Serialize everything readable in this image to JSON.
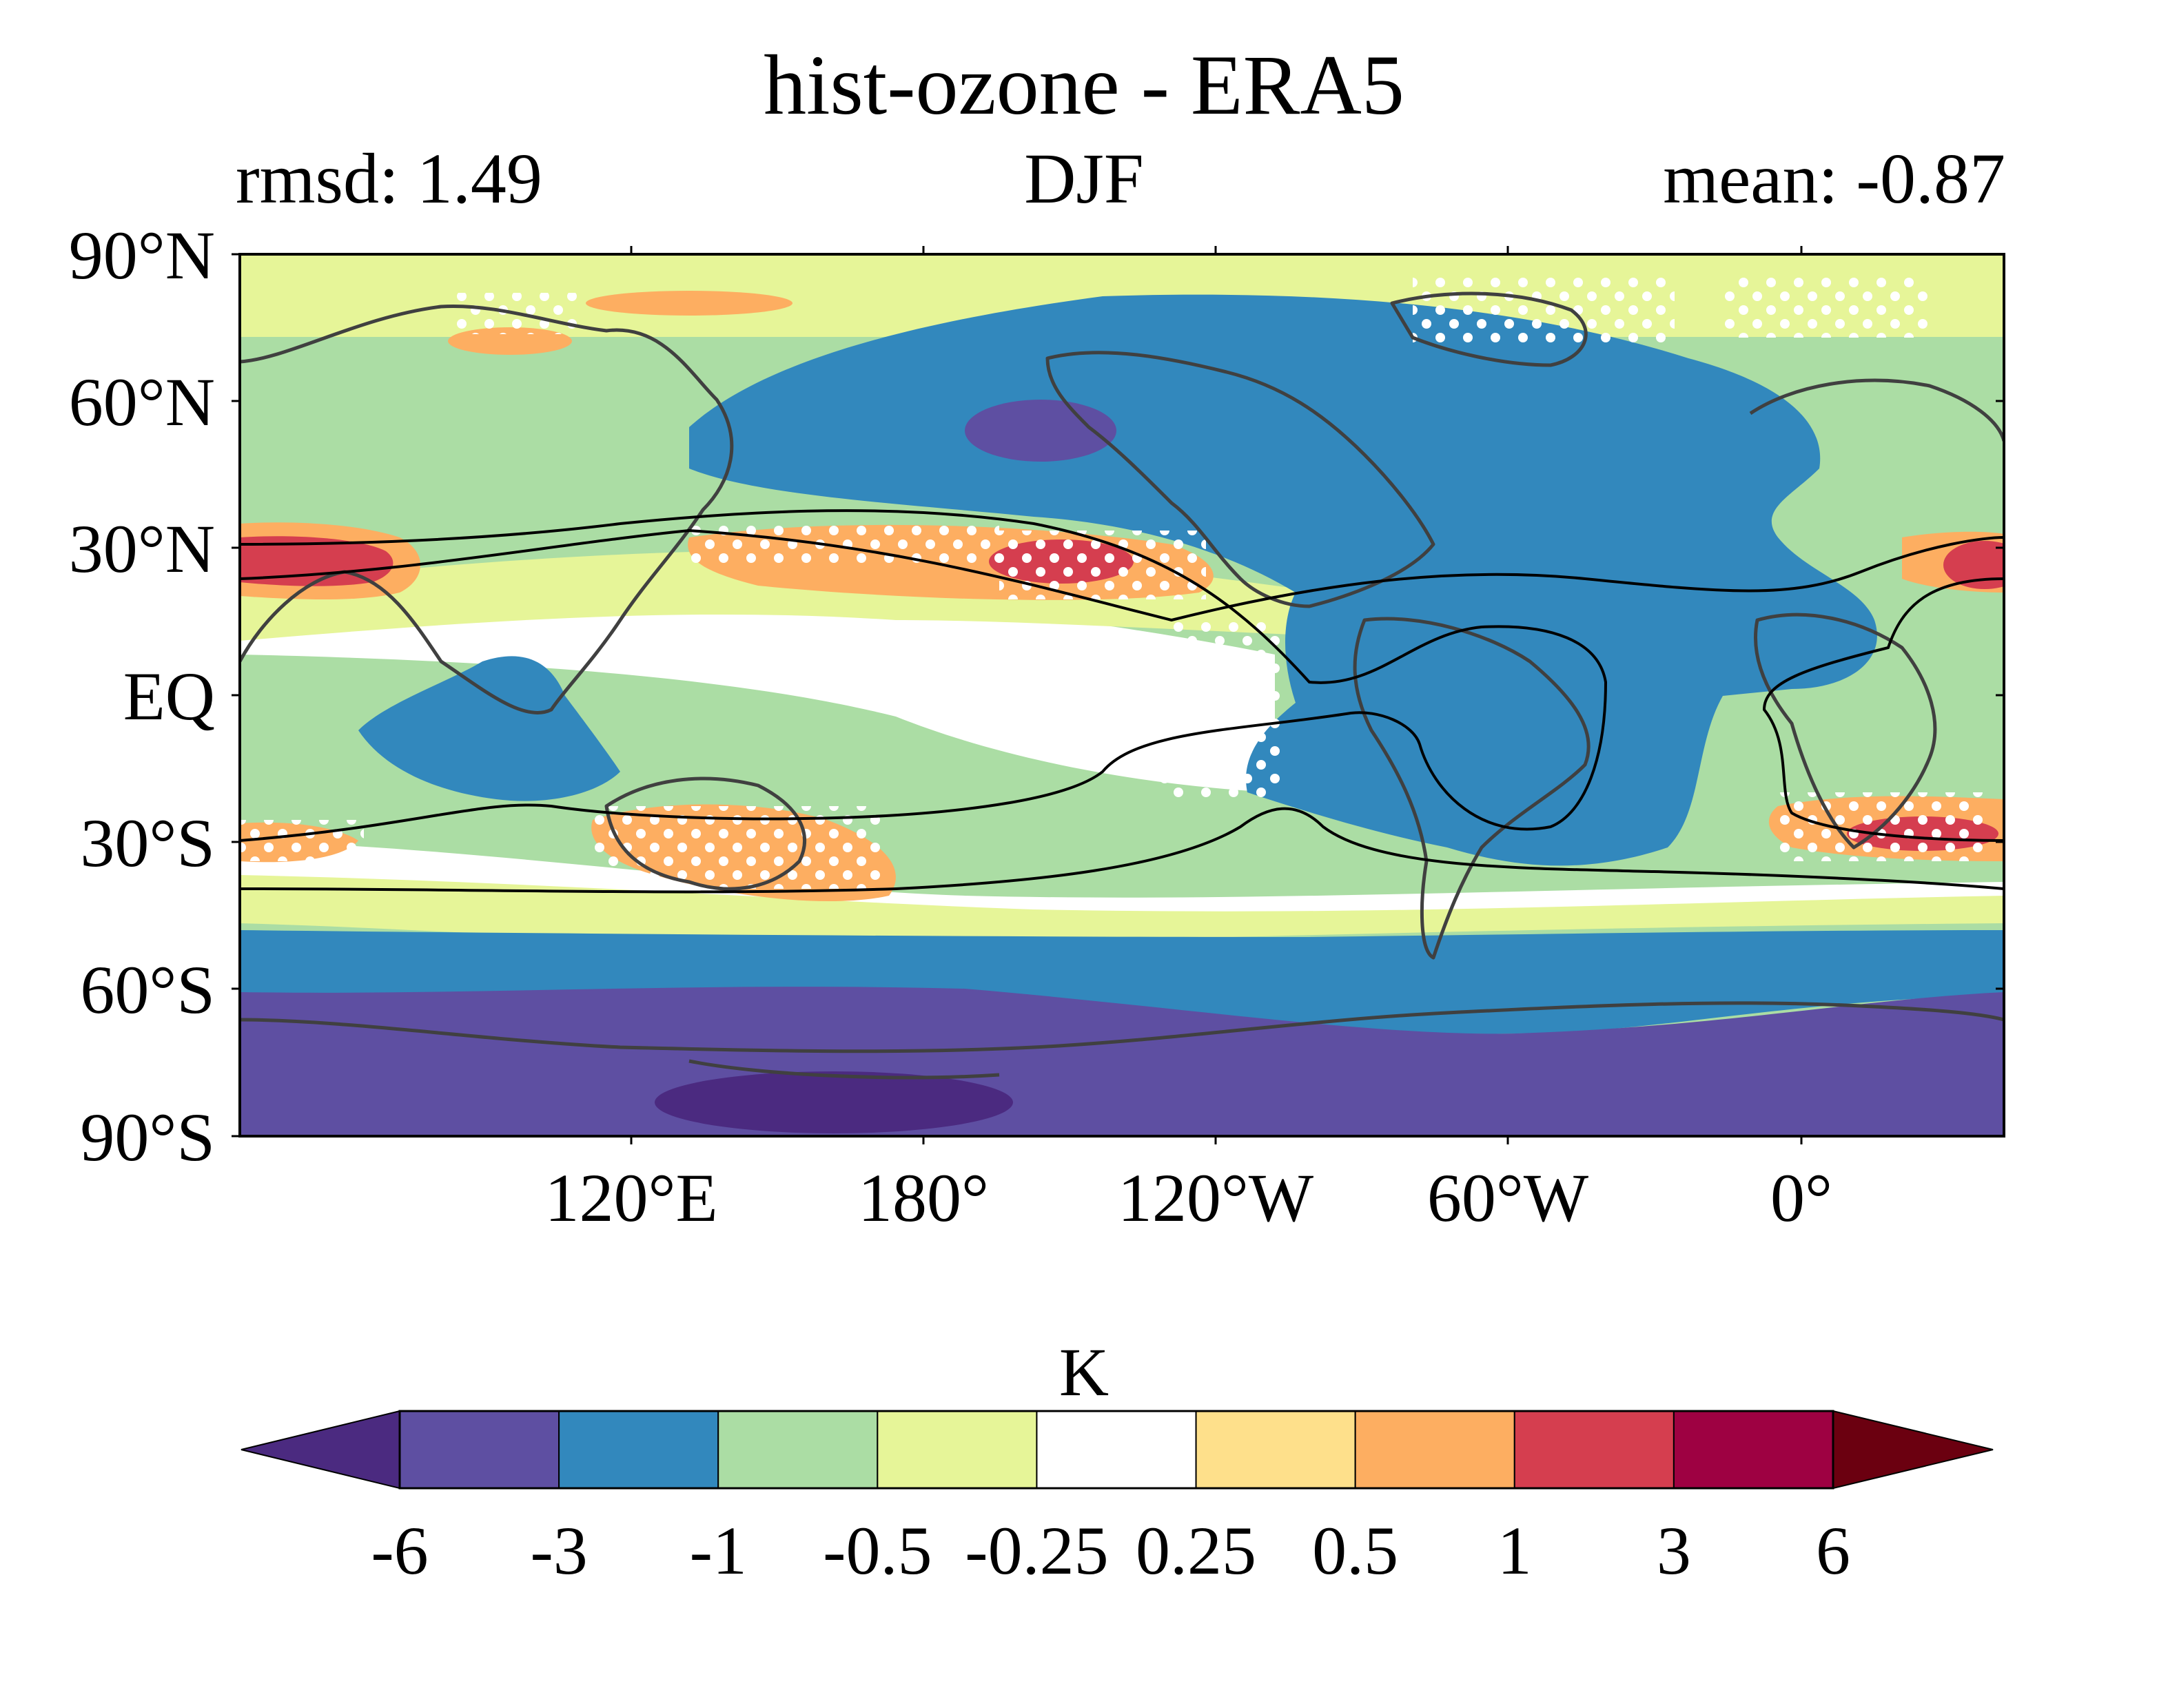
{
  "title": "hist-ozone - ERA5",
  "left_subtitle": "rmsd: 1.49",
  "center_subtitle": "DJF",
  "right_subtitle": "mean: -0.87",
  "map": {
    "lat_labels": [
      "90°N",
      "60°N",
      "30°N",
      "EQ",
      "30°S",
      "60°S",
      "90°S"
    ],
    "lon_labels": [
      "120°E",
      "180°",
      "120°W",
      "60°W",
      "0°"
    ],
    "lon_range": [
      40,
      400
    ]
  },
  "colorbar": {
    "label": "K",
    "ticks": [
      "-6",
      "-3",
      "-1",
      "-0.5",
      "-0.25",
      "0.25",
      "0.5",
      "1",
      "3",
      "6"
    ],
    "colors": [
      "#4b2a80",
      "#5e4fa2",
      "#3288bd",
      "#abdda4",
      "#e6f598",
      "#ffffff",
      "#fee08b",
      "#fdae61",
      "#d53e4f",
      "#9e0142",
      "#6b0010"
    ]
  },
  "chart_data": {
    "type": "heatmap",
    "title": "hist-ozone - ERA5",
    "subtitle": "DJF",
    "rmsd": 1.49,
    "mean": -0.87,
    "colorbar_label": "K",
    "levels": [
      -6,
      -3,
      -1,
      -0.5,
      -0.25,
      0.25,
      0.5,
      1,
      3,
      6
    ],
    "xlabel": "",
    "ylabel": "",
    "xlim": [
      40,
      400
    ],
    "ylim": [
      -90,
      90
    ]
  }
}
